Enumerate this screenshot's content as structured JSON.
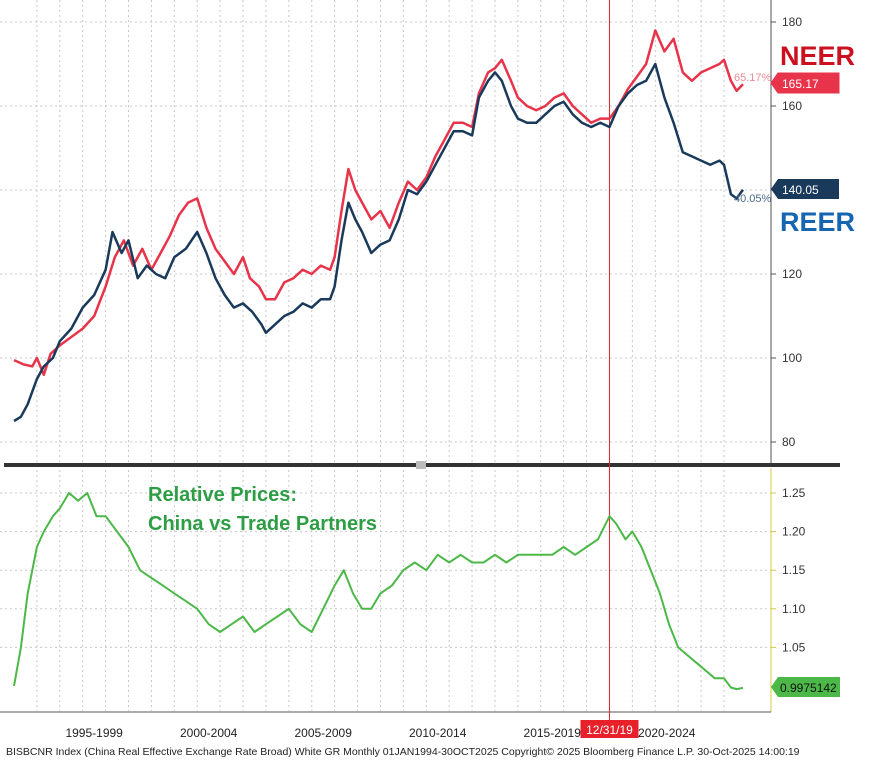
{
  "colors": {
    "neer": "#e8344a",
    "reer": "#1a3a5c",
    "relative": "#4cb848",
    "neer_label": "#cc1020",
    "reer_label": "#1565b0",
    "relative_title": "#2e9e45",
    "marker": "#e8202a",
    "separator": "#333333",
    "grid": "#c8c8c8"
  },
  "chart_data": [
    {
      "type": "line",
      "x_range": [
        1994.0,
        2025.83
      ],
      "ylim": [
        78,
        182
      ],
      "yticks": [
        80,
        100,
        120,
        140,
        160,
        180
      ],
      "grid": true,
      "series": [
        {
          "name": "NEER",
          "label": "NEER",
          "last_value_tag": "165.17",
          "pct_label": "65.17%",
          "points": [
            [
              1994.0,
              99.5
            ],
            [
              1994.4,
              98.5
            ],
            [
              1994.8,
              98
            ],
            [
              1995.0,
              100
            ],
            [
              1995.3,
              96
            ],
            [
              1995.6,
              101
            ],
            [
              1996.0,
              103
            ],
            [
              1996.5,
              105
            ],
            [
              1997.0,
              107
            ],
            [
              1997.5,
              110
            ],
            [
              1998.0,
              117
            ],
            [
              1998.4,
              124
            ],
            [
              1998.8,
              128
            ],
            [
              1999.2,
              122
            ],
            [
              1999.6,
              126
            ],
            [
              2000.0,
              121
            ],
            [
              2000.4,
              125
            ],
            [
              2000.8,
              129
            ],
            [
              2001.2,
              134
            ],
            [
              2001.6,
              137
            ],
            [
              2002.0,
              138
            ],
            [
              2002.4,
              131
            ],
            [
              2002.8,
              126
            ],
            [
              2003.2,
              123
            ],
            [
              2003.6,
              120
            ],
            [
              2004.0,
              124
            ],
            [
              2004.3,
              119
            ],
            [
              2004.7,
              117
            ],
            [
              2005.0,
              114
            ],
            [
              2005.4,
              114
            ],
            [
              2005.8,
              118
            ],
            [
              2006.2,
              119
            ],
            [
              2006.6,
              121
            ],
            [
              2007.0,
              120
            ],
            [
              2007.4,
              122
            ],
            [
              2007.8,
              121
            ],
            [
              2008.0,
              124
            ],
            [
              2008.3,
              135
            ],
            [
              2008.6,
              145
            ],
            [
              2008.9,
              140
            ],
            [
              2009.2,
              137
            ],
            [
              2009.6,
              133
            ],
            [
              2010.0,
              135
            ],
            [
              2010.4,
              131
            ],
            [
              2010.8,
              137
            ],
            [
              2011.2,
              142
            ],
            [
              2011.6,
              140
            ],
            [
              2012.0,
              143
            ],
            [
              2012.4,
              148
            ],
            [
              2012.8,
              152
            ],
            [
              2013.2,
              156
            ],
            [
              2013.6,
              156
            ],
            [
              2014.0,
              155
            ],
            [
              2014.3,
              163
            ],
            [
              2014.7,
              168
            ],
            [
              2015.0,
              169
            ],
            [
              2015.3,
              171
            ],
            [
              2015.7,
              166
            ],
            [
              2016.0,
              162
            ],
            [
              2016.4,
              160
            ],
            [
              2016.8,
              159
            ],
            [
              2017.2,
              160
            ],
            [
              2017.6,
              162
            ],
            [
              2018.0,
              163
            ],
            [
              2018.4,
              160
            ],
            [
              2018.8,
              158
            ],
            [
              2019.2,
              156
            ],
            [
              2019.6,
              157
            ],
            [
              2020.0,
              157
            ],
            [
              2020.4,
              160
            ],
            [
              2020.8,
              164
            ],
            [
              2021.2,
              167
            ],
            [
              2021.6,
              170
            ],
            [
              2022.0,
              178
            ],
            [
              2022.4,
              173
            ],
            [
              2022.8,
              176
            ],
            [
              2023.2,
              168
            ],
            [
              2023.6,
              166
            ],
            [
              2024.0,
              168
            ],
            [
              2024.4,
              169
            ],
            [
              2024.8,
              170
            ],
            [
              2025.0,
              171
            ],
            [
              2025.3,
              166
            ],
            [
              2025.55,
              163.6
            ],
            [
              2025.83,
              165.17
            ]
          ]
        },
        {
          "name": "REER",
          "label": "REER",
          "last_value_tag": "140.05",
          "pct_label": "40.05%",
          "points": [
            [
              1994.0,
              85
            ],
            [
              1994.3,
              86
            ],
            [
              1994.6,
              89
            ],
            [
              1995.0,
              95
            ],
            [
              1995.3,
              98
            ],
            [
              1995.7,
              100
            ],
            [
              1996.0,
              104
            ],
            [
              1996.5,
              107
            ],
            [
              1997.0,
              112
            ],
            [
              1997.5,
              115
            ],
            [
              1998.0,
              121
            ],
            [
              1998.3,
              130
            ],
            [
              1998.7,
              125
            ],
            [
              1999.0,
              128
            ],
            [
              1999.4,
              119
            ],
            [
              1999.8,
              122
            ],
            [
              2000.2,
              120
            ],
            [
              2000.6,
              119
            ],
            [
              2001.0,
              124
            ],
            [
              2001.5,
              126
            ],
            [
              2002.0,
              130
            ],
            [
              2002.4,
              125
            ],
            [
              2002.8,
              119
            ],
            [
              2003.2,
              115
            ],
            [
              2003.6,
              112
            ],
            [
              2004.0,
              113
            ],
            [
              2004.4,
              111
            ],
            [
              2004.8,
              108
            ],
            [
              2005.0,
              106
            ],
            [
              2005.4,
              108
            ],
            [
              2005.8,
              110
            ],
            [
              2006.2,
              111
            ],
            [
              2006.6,
              113
            ],
            [
              2007.0,
              112
            ],
            [
              2007.4,
              114
            ],
            [
              2007.8,
              114
            ],
            [
              2008.0,
              117
            ],
            [
              2008.3,
              128
            ],
            [
              2008.6,
              137
            ],
            [
              2008.9,
              133
            ],
            [
              2009.2,
              130
            ],
            [
              2009.6,
              125
            ],
            [
              2010.0,
              127
            ],
            [
              2010.4,
              128
            ],
            [
              2010.8,
              133
            ],
            [
              2011.2,
              140
            ],
            [
              2011.6,
              139
            ],
            [
              2012.0,
              142
            ],
            [
              2012.4,
              146
            ],
            [
              2012.8,
              150
            ],
            [
              2013.2,
              154
            ],
            [
              2013.6,
              154
            ],
            [
              2014.0,
              153
            ],
            [
              2014.3,
              162
            ],
            [
              2014.7,
              166
            ],
            [
              2015.0,
              168
            ],
            [
              2015.3,
              166
            ],
            [
              2015.7,
              160
            ],
            [
              2016.0,
              157
            ],
            [
              2016.4,
              156
            ],
            [
              2016.8,
              156
            ],
            [
              2017.2,
              158
            ],
            [
              2017.6,
              160
            ],
            [
              2018.0,
              161
            ],
            [
              2018.4,
              158
            ],
            [
              2018.8,
              156
            ],
            [
              2019.2,
              155
            ],
            [
              2019.6,
              156
            ],
            [
              2020.0,
              155
            ],
            [
              2020.4,
              160
            ],
            [
              2020.8,
              163
            ],
            [
              2021.2,
              165
            ],
            [
              2021.6,
              166
            ],
            [
              2022.0,
              170
            ],
            [
              2022.4,
              162
            ],
            [
              2022.8,
              156
            ],
            [
              2023.2,
              149
            ],
            [
              2023.6,
              148
            ],
            [
              2024.0,
              147
            ],
            [
              2024.4,
              146
            ],
            [
              2024.8,
              147
            ],
            [
              2025.0,
              146
            ],
            [
              2025.3,
              139
            ],
            [
              2025.55,
              138
            ],
            [
              2025.83,
              140.05
            ]
          ]
        }
      ]
    },
    {
      "type": "line",
      "title": "Relative Prices:",
      "subtitle": "China vs Trade Partners",
      "x_range": [
        1994.0,
        2025.83
      ],
      "ylim": [
        0.978,
        1.258
      ],
      "yticks": [
        "1.25",
        "1.20",
        "1.15",
        "1.10",
        "1.05"
      ],
      "ytick_values": [
        1.25,
        1.2,
        1.15,
        1.1,
        1.05
      ],
      "grid": true,
      "series": [
        {
          "last_value_tag": "0.9975142",
          "points": [
            [
              1994.0,
              1.0
            ],
            [
              1994.3,
              1.05
            ],
            [
              1994.6,
              1.12
            ],
            [
              1995.0,
              1.18
            ],
            [
              1995.3,
              1.2
            ],
            [
              1995.7,
              1.22
            ],
            [
              1996.0,
              1.23
            ],
            [
              1996.4,
              1.25
            ],
            [
              1996.8,
              1.24
            ],
            [
              1997.2,
              1.25
            ],
            [
              1997.6,
              1.22
            ],
            [
              1998.0,
              1.22
            ],
            [
              1998.5,
              1.2
            ],
            [
              1999.0,
              1.18
            ],
            [
              1999.5,
              1.15
            ],
            [
              2000.0,
              1.14
            ],
            [
              2000.5,
              1.13
            ],
            [
              2001.0,
              1.12
            ],
            [
              2001.5,
              1.11
            ],
            [
              2002.0,
              1.1
            ],
            [
              2002.5,
              1.08
            ],
            [
              2003.0,
              1.07
            ],
            [
              2003.5,
              1.08
            ],
            [
              2004.0,
              1.09
            ],
            [
              2004.5,
              1.07
            ],
            [
              2005.0,
              1.08
            ],
            [
              2005.5,
              1.09
            ],
            [
              2006.0,
              1.1
            ],
            [
              2006.5,
              1.08
            ],
            [
              2007.0,
              1.07
            ],
            [
              2007.5,
              1.1
            ],
            [
              2008.0,
              1.13
            ],
            [
              2008.4,
              1.15
            ],
            [
              2008.8,
              1.12
            ],
            [
              2009.2,
              1.1
            ],
            [
              2009.6,
              1.1
            ],
            [
              2010.0,
              1.12
            ],
            [
              2010.5,
              1.13
            ],
            [
              2011.0,
              1.15
            ],
            [
              2011.5,
              1.16
            ],
            [
              2012.0,
              1.15
            ],
            [
              2012.5,
              1.17
            ],
            [
              2013.0,
              1.16
            ],
            [
              2013.5,
              1.17
            ],
            [
              2014.0,
              1.16
            ],
            [
              2014.5,
              1.16
            ],
            [
              2015.0,
              1.17
            ],
            [
              2015.5,
              1.16
            ],
            [
              2016.0,
              1.17
            ],
            [
              2016.5,
              1.17
            ],
            [
              2017.0,
              1.17
            ],
            [
              2017.5,
              1.17
            ],
            [
              2018.0,
              1.18
            ],
            [
              2018.5,
              1.17
            ],
            [
              2019.0,
              1.18
            ],
            [
              2019.5,
              1.19
            ],
            [
              2020.0,
              1.22
            ],
            [
              2020.3,
              1.21
            ],
            [
              2020.7,
              1.19
            ],
            [
              2021.0,
              1.2
            ],
            [
              2021.4,
              1.18
            ],
            [
              2021.8,
              1.15
            ],
            [
              2022.2,
              1.12
            ],
            [
              2022.6,
              1.08
            ],
            [
              2023.0,
              1.05
            ],
            [
              2023.4,
              1.04
            ],
            [
              2023.8,
              1.03
            ],
            [
              2024.2,
              1.02
            ],
            [
              2024.6,
              1.01
            ],
            [
              2025.0,
              1.01
            ],
            [
              2025.3,
              0.998
            ],
            [
              2025.55,
              0.996
            ],
            [
              2025.83,
              0.9975
            ]
          ]
        }
      ]
    }
  ],
  "x_axis": {
    "ticks": [
      {
        "label": "1995-1999",
        "x": 1997.5
      },
      {
        "label": "2000-2004",
        "x": 2002.5
      },
      {
        "label": "2005-2009",
        "x": 2007.5
      },
      {
        "label": "2010-2014",
        "x": 2012.5
      },
      {
        "label": "2015-2019",
        "x": 2017.5
      },
      {
        "label": "2020-2024",
        "x": 2022.5
      }
    ],
    "gridlines": [
      1995,
      1996,
      1997,
      1998,
      1999,
      2000,
      2001,
      2002,
      2003,
      2004,
      2005,
      2006,
      2007,
      2008,
      2009,
      2010,
      2011,
      2012,
      2013,
      2014,
      2015,
      2016,
      2017,
      2018,
      2019,
      2020,
      2021,
      2022,
      2023,
      2024,
      2025
    ]
  },
  "marker": {
    "label": "12/31/19",
    "x": 2020.0
  },
  "labels": {
    "neer": "NEER",
    "reer": "REER"
  },
  "footer": "BISBCNR Index (China Real Effective Exchange Rate Broad) White GR Monthly 01JAN1994-30OCT2025  Copyright© 2025 Bloomberg Finance L.P.  30-Oct-2025 14:00:19"
}
